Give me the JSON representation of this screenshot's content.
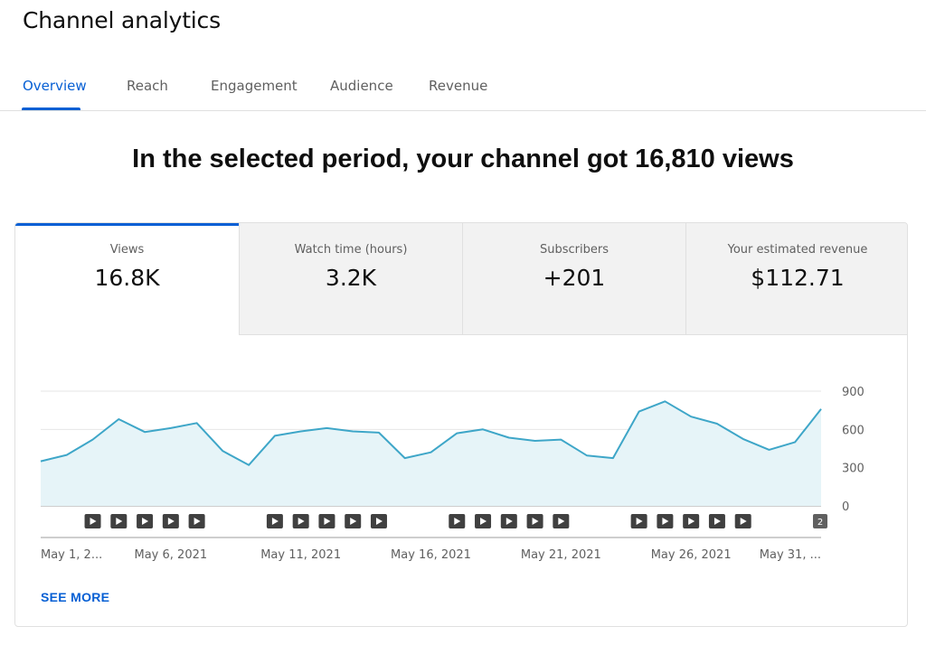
{
  "page": {
    "title": "Channel analytics",
    "headline": "In the selected period, your channel got 16,810 views"
  },
  "tabs": [
    {
      "label": "Overview",
      "active": true
    },
    {
      "label": "Reach"
    },
    {
      "label": "Engagement"
    },
    {
      "label": "Audience"
    },
    {
      "label": "Revenue"
    }
  ],
  "metrics": [
    {
      "label": "Views",
      "value": "16.8K",
      "active": true
    },
    {
      "label": "Watch time (hours)",
      "value": "3.2K"
    },
    {
      "label": "Subscribers",
      "value": "+201"
    },
    {
      "label": "Your estimated revenue",
      "value": "$112.71"
    }
  ],
  "colors": {
    "accent": "#065fd4",
    "line": "#3ea6c8",
    "area": "#e6f4f8",
    "marker": "#404040"
  },
  "icons": {
    "video_marker": "play-icon",
    "overflow_marker": "count-badge"
  },
  "chart_data": {
    "type": "area",
    "series": [
      {
        "values": [
          350,
          400,
          520,
          680,
          580,
          610,
          650,
          430,
          320,
          550,
          585,
          610,
          585,
          575,
          375,
          420,
          570,
          600,
          535,
          510,
          520,
          395,
          375,
          740,
          820,
          700,
          645,
          525,
          440,
          500,
          760
        ]
      }
    ],
    "x": [
      "May 1",
      "May 2",
      "May 3",
      "May 4",
      "May 5",
      "May 6",
      "May 7",
      "May 8",
      "May 9",
      "May 10",
      "May 11",
      "May 12",
      "May 13",
      "May 14",
      "May 15",
      "May 16",
      "May 17",
      "May 18",
      "May 19",
      "May 20",
      "May 21",
      "May 22",
      "May 23",
      "May 24",
      "May 25",
      "May 26",
      "May 27",
      "May 28",
      "May 29",
      "May 30",
      "May 31"
    ],
    "x_tick_labels": [
      "May 1, 2...",
      "May 6, 2021",
      "May 11, 2021",
      "May 16, 2021",
      "May 21, 2021",
      "May 26, 2021",
      "May 31, ..."
    ],
    "y_ticks": [
      "900",
      "600",
      "300",
      "0"
    ],
    "ylim": [
      0,
      900
    ],
    "grid": true,
    "y_axis_side": "right",
    "video_markers": {
      "groups": [
        {
          "start_day": "May 3",
          "count": 5
        },
        {
          "start_day": "May 10",
          "count": 5
        },
        {
          "start_day": "May 17",
          "count": 5
        },
        {
          "start_day": "May 24",
          "count": 5
        }
      ],
      "overflow_label": "2"
    }
  },
  "see_more": "SEE MORE"
}
